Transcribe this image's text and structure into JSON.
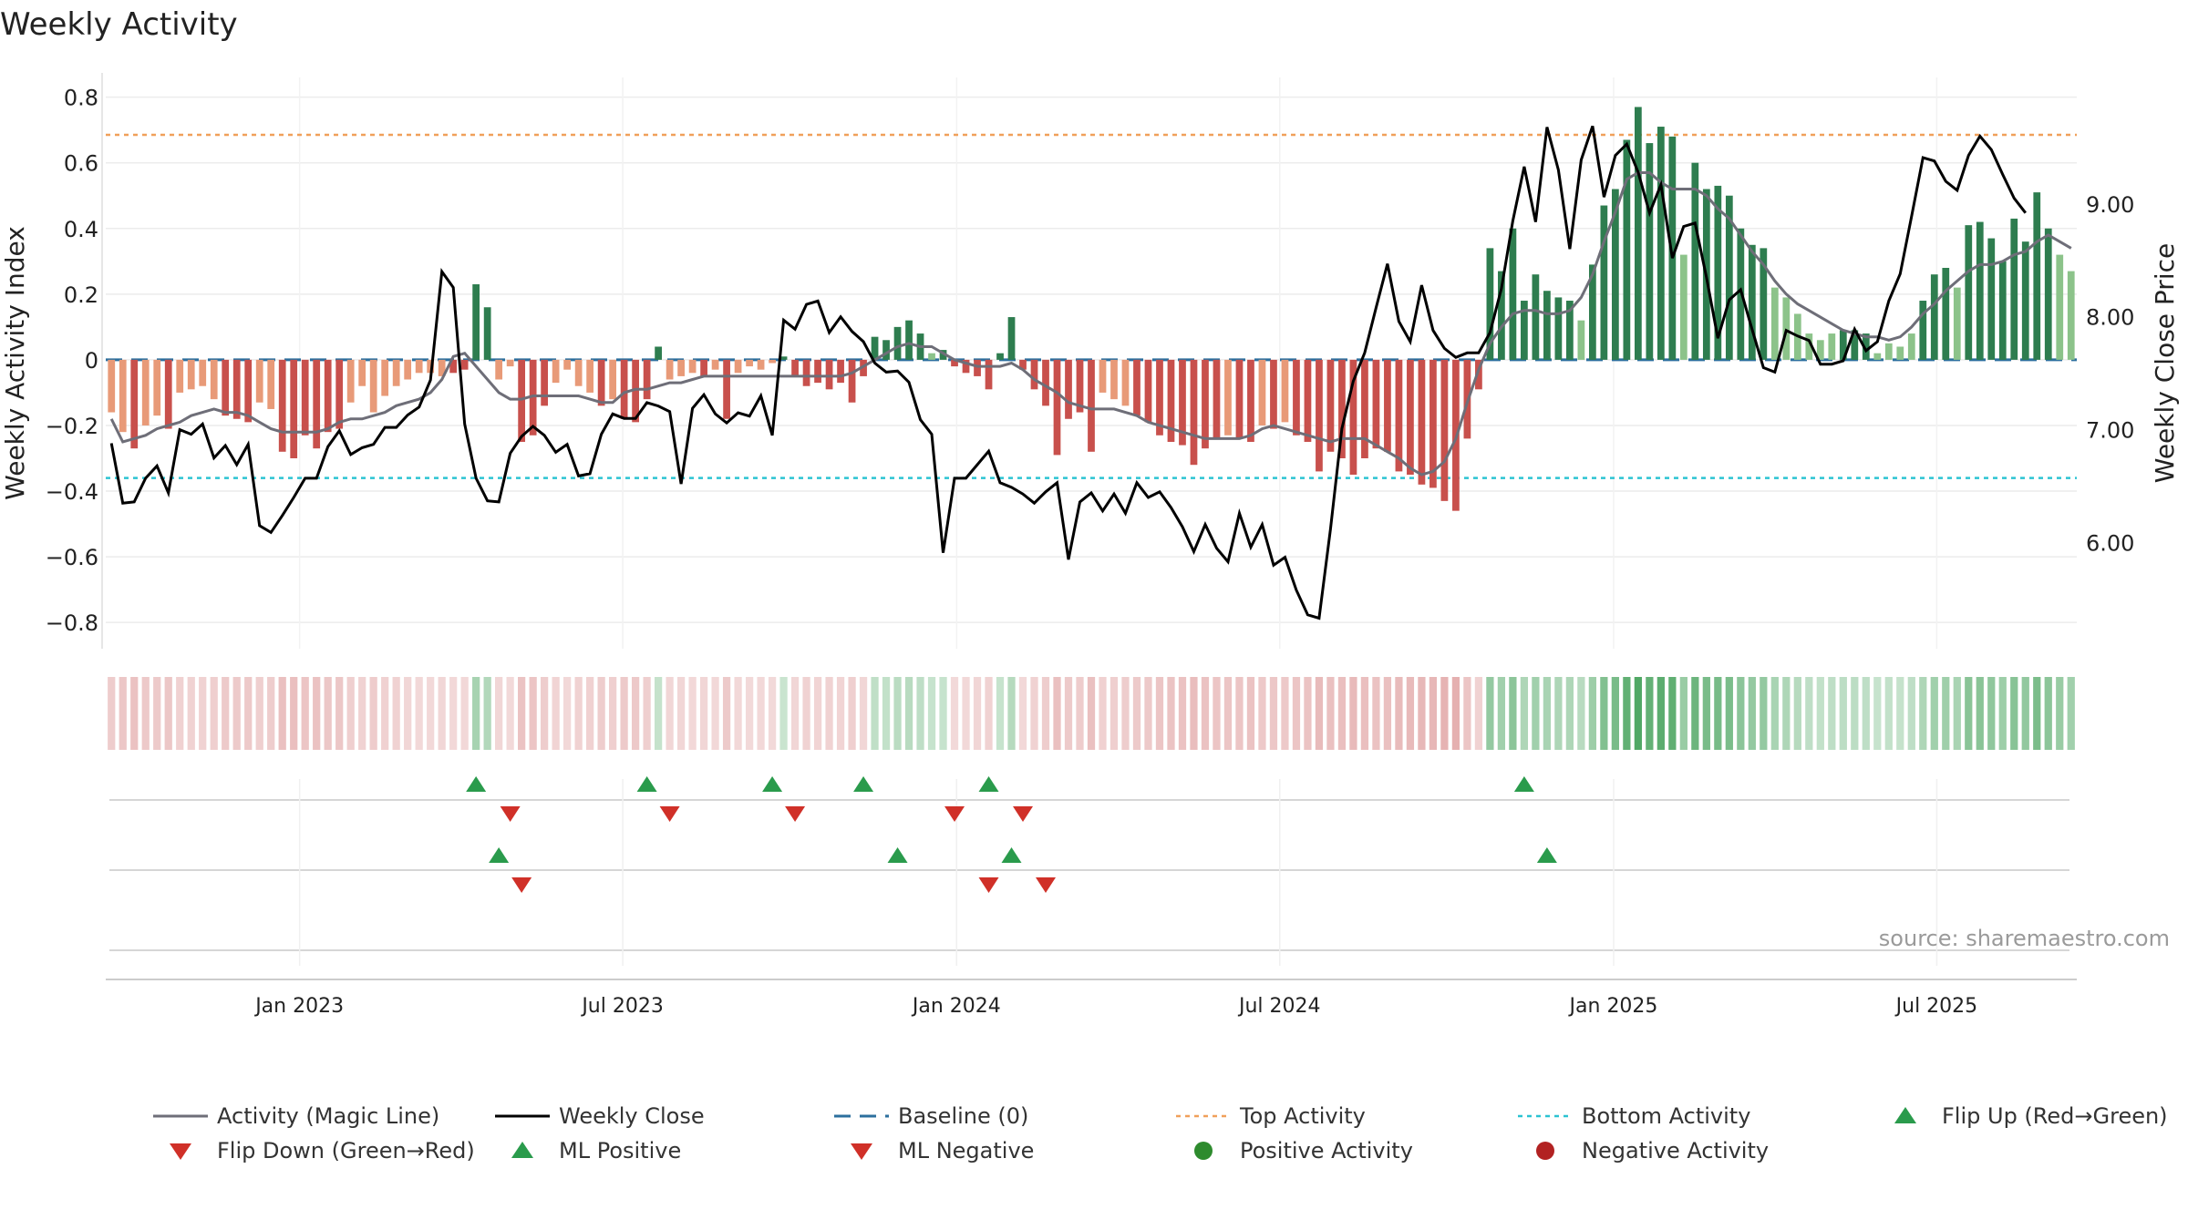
{
  "chart_data": {
    "type": "bar",
    "title": "Weekly Activity",
    "ylabel_left": "Weekly Activity Index",
    "ylabel_right": "Weekly Close Price",
    "ylim_left": [
      -0.88,
      0.86
    ],
    "ylim_right": [
      5.06,
      10.12
    ],
    "yticks_left": [
      {
        "v": 0.8,
        "label": "0.8"
      },
      {
        "v": 0.6,
        "label": "0.6"
      },
      {
        "v": 0.4,
        "label": "0.4"
      },
      {
        "v": 0.2,
        "label": "0.2"
      },
      {
        "v": 0,
        "label": "0"
      },
      {
        "v": -0.2,
        "label": "−0.2"
      },
      {
        "v": -0.4,
        "label": "−0.4"
      },
      {
        "v": -0.6,
        "label": "−0.6"
      },
      {
        "v": -0.8,
        "label": "−0.8"
      }
    ],
    "yticks_right": [
      {
        "v": 9,
        "label": "9.00"
      },
      {
        "v": 8,
        "label": "8.00"
      },
      {
        "v": 7,
        "label": "7.00"
      },
      {
        "v": 6,
        "label": "6.00"
      }
    ],
    "x_range": [
      0,
      183
    ],
    "xticks": [
      {
        "week": 18,
        "label": "Jan 2023"
      },
      {
        "week": 48,
        "label": "Jul 2023"
      },
      {
        "week": 79,
        "label": "Jan 2024"
      },
      {
        "week": 109,
        "label": "Jul 2024"
      },
      {
        "week": 140,
        "label": "Jan 2025"
      },
      {
        "week": 170,
        "label": "Jul 2025"
      }
    ],
    "top_activity": 0.685,
    "bottom_activity": -0.36,
    "baseline": 0,
    "activity": [
      -0.16,
      -0.22,
      -0.27,
      -0.2,
      -0.17,
      -0.21,
      -0.1,
      -0.09,
      -0.08,
      -0.12,
      -0.17,
      -0.18,
      -0.19,
      -0.13,
      -0.15,
      -0.28,
      -0.3,
      -0.23,
      -0.27,
      -0.22,
      -0.21,
      -0.13,
      -0.08,
      -0.16,
      -0.11,
      -0.08,
      -0.06,
      -0.04,
      -0.04,
      -0.05,
      -0.04,
      -0.03,
      0.23,
      0.16,
      -0.06,
      -0.02,
      -0.25,
      -0.23,
      -0.14,
      -0.07,
      -0.03,
      -0.08,
      -0.1,
      -0.14,
      -0.12,
      -0.18,
      -0.19,
      -0.12,
      0.04,
      -0.06,
      -0.05,
      -0.04,
      -0.05,
      -0.03,
      -0.18,
      -0.04,
      -0.02,
      -0.03,
      -0.01,
      0.01,
      -0.05,
      -0.08,
      -0.07,
      -0.09,
      -0.07,
      -0.13,
      -0.05,
      0.07,
      0.06,
      0.1,
      0.12,
      0.08,
      0.02,
      0.03,
      -0.02,
      -0.04,
      -0.05,
      -0.09,
      0.02,
      0.13,
      -0.03,
      -0.09,
      -0.14,
      -0.29,
      -0.18,
      -0.16,
      -0.28,
      -0.1,
      -0.12,
      -0.14,
      -0.17,
      -0.19,
      -0.23,
      -0.25,
      -0.26,
      -0.32,
      -0.27,
      -0.24,
      -0.23,
      -0.24,
      -0.25,
      -0.2,
      -0.21,
      -0.19,
      -0.23,
      -0.25,
      -0.34,
      -0.28,
      -0.3,
      -0.35,
      -0.3,
      -0.27,
      -0.28,
      -0.34,
      -0.35,
      -0.38,
      -0.39,
      -0.43,
      -0.46,
      -0.24,
      -0.09,
      0.34,
      0.27,
      0.4,
      0.18,
      0.26,
      0.21,
      0.19,
      0.18,
      0.12,
      0.29,
      0.47,
      0.52,
      0.67,
      0.77,
      0.66,
      0.71,
      0.68,
      0.32,
      0.6,
      0.52,
      0.53,
      0.5,
      0.4,
      0.35,
      0.34,
      0.22,
      0.19,
      0.14,
      0.08,
      0.06,
      0.08,
      0.09,
      0.09,
      0.08,
      0.02,
      0.05,
      0.04,
      0.08,
      0.18,
      0.26,
      0.28,
      0.22,
      0.41,
      0.42,
      0.37,
      0.3,
      0.43,
      0.36,
      0.51,
      0.4,
      0.32,
      0.27
    ],
    "close": [
      6.88,
      6.35,
      6.36,
      6.57,
      6.68,
      6.44,
      7.0,
      6.96,
      7.05,
      6.75,
      6.86,
      6.69,
      6.87,
      6.15,
      6.09,
      6.24,
      6.4,
      6.57,
      6.57,
      6.85,
      6.99,
      6.78,
      6.84,
      6.87,
      7.02,
      7.02,
      7.13,
      7.2,
      7.44,
      8.4,
      8.26,
      7.05,
      6.57,
      6.37,
      6.36,
      6.79,
      6.94,
      7.03,
      6.95,
      6.8,
      6.87,
      6.59,
      6.61,
      6.96,
      7.14,
      7.1,
      7.1,
      7.24,
      7.21,
      7.16,
      6.52,
      7.19,
      7.31,
      7.14,
      7.06,
      7.15,
      7.12,
      7.3,
      6.95,
      7.97,
      7.89,
      8.11,
      8.14,
      7.86,
      8.0,
      7.87,
      7.78,
      7.59,
      7.51,
      7.52,
      7.42,
      7.09,
      6.96,
      5.91,
      6.57,
      6.57,
      6.69,
      6.81,
      6.53,
      6.49,
      6.43,
      6.35,
      6.45,
      6.53,
      5.85,
      6.36,
      6.44,
      6.28,
      6.43,
      6.26,
      6.53,
      6.4,
      6.45,
      6.31,
      6.14,
      5.92,
      6.16,
      5.95,
      5.83,
      6.26,
      5.96,
      6.16,
      5.8,
      5.87,
      5.58,
      5.36,
      5.33,
      6.12,
      7.01,
      7.43,
      7.68,
      8.08,
      8.47,
      7.96,
      7.78,
      8.28,
      7.88,
      7.72,
      7.64,
      7.68,
      7.68,
      7.86,
      8.25,
      8.85,
      9.33,
      8.84,
      9.68,
      9.3,
      8.6,
      9.39,
      9.69,
      9.06,
      9.43,
      9.53,
      9.28,
      8.92,
      9.17,
      8.52,
      8.8,
      8.83,
      8.35,
      7.81,
      8.15,
      8.24,
      7.89,
      7.55,
      7.51,
      7.88,
      7.83,
      7.79,
      7.58,
      7.58,
      7.61,
      7.89,
      7.7,
      7.78,
      8.14,
      8.38,
      8.89,
      9.41,
      9.38,
      9.2,
      9.12,
      9.43,
      9.6,
      9.48,
      9.26,
      9.05,
      8.92
    ],
    "magic_line": [
      -0.18,
      -0.25,
      -0.24,
      -0.23,
      -0.21,
      -0.2,
      -0.19,
      -0.17,
      -0.16,
      -0.15,
      -0.16,
      -0.16,
      -0.17,
      -0.19,
      -0.21,
      -0.22,
      -0.22,
      -0.22,
      -0.22,
      -0.21,
      -0.19,
      -0.18,
      -0.18,
      -0.17,
      -0.16,
      -0.14,
      -0.13,
      -0.12,
      -0.1,
      -0.06,
      0.01,
      0.02,
      -0.02,
      -0.06,
      -0.1,
      -0.12,
      -0.12,
      -0.11,
      -0.11,
      -0.11,
      -0.11,
      -0.11,
      -0.12,
      -0.13,
      -0.13,
      -0.1,
      -0.09,
      -0.09,
      -0.08,
      -0.07,
      -0.07,
      -0.06,
      -0.05,
      -0.05,
      -0.05,
      -0.05,
      -0.05,
      -0.05,
      -0.05,
      -0.05,
      -0.05,
      -0.05,
      -0.05,
      -0.05,
      -0.05,
      -0.04,
      -0.02,
      0.0,
      0.02,
      0.04,
      0.05,
      0.04,
      0.04,
      0.02,
      0.0,
      -0.01,
      -0.02,
      -0.02,
      -0.02,
      -0.01,
      -0.03,
      -0.06,
      -0.08,
      -0.1,
      -0.13,
      -0.14,
      -0.15,
      -0.15,
      -0.15,
      -0.16,
      -0.17,
      -0.19,
      -0.2,
      -0.21,
      -0.22,
      -0.23,
      -0.24,
      -0.24,
      -0.24,
      -0.24,
      -0.23,
      -0.21,
      -0.2,
      -0.21,
      -0.22,
      -0.23,
      -0.24,
      -0.25,
      -0.24,
      -0.24,
      -0.24,
      -0.26,
      -0.28,
      -0.3,
      -0.33,
      -0.35,
      -0.34,
      -0.31,
      -0.24,
      -0.13,
      -0.03,
      0.05,
      0.1,
      0.14,
      0.15,
      0.15,
      0.14,
      0.14,
      0.15,
      0.19,
      0.26,
      0.36,
      0.45,
      0.55,
      0.57,
      0.57,
      0.54,
      0.52,
      0.52,
      0.52,
      0.5,
      0.46,
      0.43,
      0.38,
      0.33,
      0.29,
      0.24,
      0.2,
      0.17,
      0.15,
      0.13,
      0.11,
      0.09,
      0.08,
      0.07,
      0.07,
      0.06,
      0.07,
      0.1,
      0.14,
      0.17,
      0.21,
      0.24,
      0.27,
      0.29,
      0.29,
      0.3,
      0.32,
      0.33,
      0.36,
      0.38,
      0.36,
      0.34
    ],
    "flip_up_weeks": [
      32,
      47,
      58,
      66,
      77,
      124
    ],
    "flip_down_weeks": [
      35,
      49,
      60,
      74,
      80
    ],
    "ml_positive_weeks": [
      34,
      69,
      79,
      126
    ],
    "ml_negative_weeks": [
      36,
      77,
      82
    ],
    "source_note": "source: sharemaestro.com",
    "legend": [
      {
        "kind": "line",
        "label": "Activity (Magic Line)",
        "color": "#6e6e78"
      },
      {
        "kind": "line",
        "label": "Weekly Close",
        "color": "#000000"
      },
      {
        "kind": "dash",
        "label": "Baseline (0)",
        "color": "#2c6f9e"
      },
      {
        "kind": "dot",
        "label": "Top Activity",
        "color": "#f0a05a"
      },
      {
        "kind": "dot",
        "label": "Bottom Activity",
        "color": "#2cc3d2"
      },
      {
        "kind": "tri-up",
        "label": "Flip Up (Red→Green)",
        "color": "#2a9b4c"
      },
      {
        "kind": "tri-down",
        "label": "Flip Down (Green→Red)",
        "color": "#d03028"
      },
      {
        "kind": "tri-up",
        "label": "ML Positive",
        "color": "#2a9b4c"
      },
      {
        "kind": "tri-down",
        "label": "ML Negative",
        "color": "#d03028"
      },
      {
        "kind": "circle",
        "label": "Positive Activity",
        "color": "#2e8b2e"
      },
      {
        "kind": "circle",
        "label": "Negative Activity",
        "color": "#b22222"
      }
    ]
  },
  "colors": {
    "pos_strong": "#2e7d4f",
    "pos_weak": "#8cc38a",
    "neg_strong": "#c8504c",
    "neg_weak": "#e89a78",
    "magic_line": "#6e6e78",
    "close": "#000000",
    "baseline": "#2c6f9e",
    "top": "#f0a05a",
    "bottom": "#2cc3d2",
    "triangle_up": "#2a9b4c",
    "triangle_down": "#d03028"
  }
}
